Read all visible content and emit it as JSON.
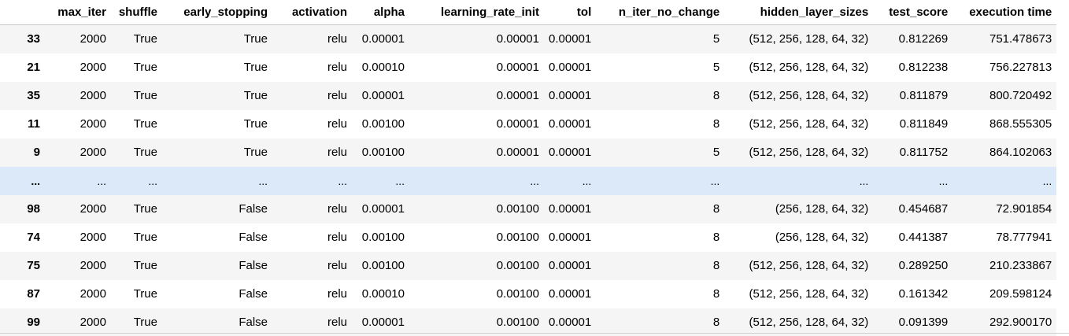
{
  "table": {
    "columns": [
      "",
      "max_iter",
      "shuffle",
      "early_stopping",
      "activation",
      "alpha",
      "learning_rate_init",
      "tol",
      "n_iter_no_change",
      "hidden_layer_sizes",
      "test_score",
      "execution time"
    ],
    "rows": [
      {
        "index": "33",
        "cells": [
          "2000",
          "True",
          "True",
          "relu",
          "0.00001",
          "0.00001",
          "0.00001",
          "5",
          "(512, 256, 128, 64, 32)",
          "0.812269",
          "751.478673"
        ]
      },
      {
        "index": "21",
        "cells": [
          "2000",
          "True",
          "True",
          "relu",
          "0.00010",
          "0.00001",
          "0.00001",
          "5",
          "(512, 256, 128, 64, 32)",
          "0.812238",
          "756.227813"
        ]
      },
      {
        "index": "35",
        "cells": [
          "2000",
          "True",
          "True",
          "relu",
          "0.00001",
          "0.00001",
          "0.00001",
          "8",
          "(512, 256, 128, 64, 32)",
          "0.811879",
          "800.720492"
        ]
      },
      {
        "index": "11",
        "cells": [
          "2000",
          "True",
          "True",
          "relu",
          "0.00100",
          "0.00001",
          "0.00001",
          "8",
          "(512, 256, 128, 64, 32)",
          "0.811849",
          "868.555305"
        ]
      },
      {
        "index": "9",
        "cells": [
          "2000",
          "True",
          "True",
          "relu",
          "0.00100",
          "0.00001",
          "0.00001",
          "5",
          "(512, 256, 128, 64, 32)",
          "0.811752",
          "864.102063"
        ]
      },
      {
        "index": "...",
        "cells": [
          "...",
          "...",
          "...",
          "...",
          "...",
          "...",
          "...",
          "...",
          "...",
          "...",
          "..."
        ],
        "ellipsis": true
      },
      {
        "index": "98",
        "cells": [
          "2000",
          "True",
          "False",
          "relu",
          "0.00001",
          "0.00100",
          "0.00001",
          "8",
          "(256, 128, 64, 32)",
          "0.454687",
          "72.901854"
        ]
      },
      {
        "index": "74",
        "cells": [
          "2000",
          "True",
          "False",
          "relu",
          "0.00100",
          "0.00100",
          "0.00001",
          "8",
          "(256, 128, 64, 32)",
          "0.441387",
          "78.777941"
        ]
      },
      {
        "index": "75",
        "cells": [
          "2000",
          "True",
          "False",
          "relu",
          "0.00100",
          "0.00100",
          "0.00001",
          "8",
          "(512, 256, 128, 64, 32)",
          "0.289250",
          "210.233867"
        ]
      },
      {
        "index": "87",
        "cells": [
          "2000",
          "True",
          "False",
          "relu",
          "0.00010",
          "0.00100",
          "0.00001",
          "8",
          "(512, 256, 128, 64, 32)",
          "0.161342",
          "209.598124"
        ]
      },
      {
        "index": "99",
        "cells": [
          "2000",
          "True",
          "False",
          "relu",
          "0.00001",
          "0.00100",
          "0.00001",
          "8",
          "(512, 256, 128, 64, 32)",
          "0.091399",
          "292.900170"
        ]
      }
    ]
  }
}
